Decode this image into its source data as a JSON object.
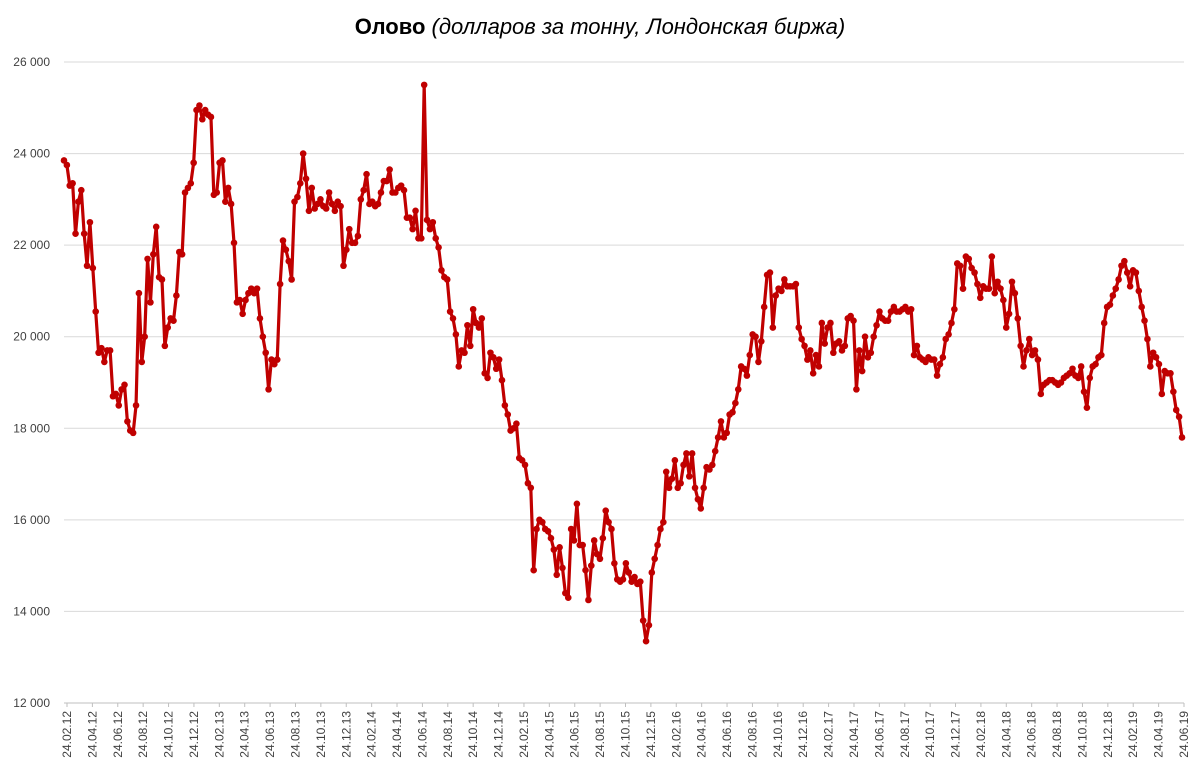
{
  "chart_data": {
    "type": "line",
    "title": "Олово",
    "subtitle": "(долларов за тонну, Лондонская биржа)",
    "xlabel": "",
    "ylabel": "",
    "ylim": [
      12000,
      26000
    ],
    "yticks": [
      12000,
      14000,
      16000,
      18000,
      20000,
      22000,
      24000,
      26000
    ],
    "ytick_labels": [
      "12 000",
      "14 000",
      "16 000",
      "18 000",
      "20 000",
      "22 000",
      "24 000",
      "26 000"
    ],
    "xtick_labels": [
      "24.02.12",
      "24.04.12",
      "24.06.12",
      "24.08.12",
      "24.10.12",
      "24.12.12",
      "24.02.13",
      "24.04.13",
      "24.06.13",
      "24.08.13",
      "24.10.13",
      "24.12.13",
      "24.02.14",
      "24.04.14",
      "24.06.14",
      "24.08.14",
      "24.10.14",
      "24.12.14",
      "24.02.15",
      "24.04.15",
      "24.06.15",
      "24.08.15",
      "24.10.15",
      "24.12.15",
      "24.02.16",
      "24.04.16",
      "24.06.16",
      "24.08.16",
      "24.10.16",
      "24.12.16",
      "24.02.17",
      "24.04.17",
      "24.06.17",
      "24.08.17",
      "24.10.17",
      "24.12.17",
      "24.02.18",
      "24.04.18",
      "24.06.18",
      "24.08.18",
      "24.10.18",
      "24.12.18",
      "24.02.19",
      "24.04.19",
      "24.06.19"
    ],
    "grid": true,
    "colors": {
      "line": "#c00000",
      "grid": "#d9d9d9",
      "axis": "#bfbfbf",
      "text": "#404040"
    },
    "series": [
      {
        "values": [
          23850,
          23750,
          23300,
          23350,
          22250,
          22950,
          23200,
          22250,
          21550,
          22500,
          21500,
          20550,
          19650,
          19750,
          19450,
          19700,
          19700,
          18700,
          18750,
          18500,
          18850,
          18950,
          18150,
          17950,
          17900,
          18500,
          20950,
          19450,
          20000,
          21700,
          20750,
          21800,
          22400,
          21300,
          21250,
          19800,
          20200,
          20400,
          20350,
          20900,
          21850,
          21800,
          23150,
          23250,
          23350,
          23800,
          24950,
          25050,
          24750,
          24950,
          24850,
          24800,
          23100,
          23150,
          23800,
          23850,
          22950,
          23250,
          22900,
          22050,
          20750,
          20800,
          20500,
          20800,
          20950,
          21050,
          20950,
          21050,
          20400,
          20000,
          19650,
          18850,
          19500,
          19400,
          19500,
          21150,
          22100,
          21900,
          21650,
          21250,
          22950,
          23050,
          23350,
          24000,
          23450,
          22750,
          23250,
          22800,
          22900,
          23000,
          22850,
          22800,
          23150,
          22900,
          22750,
          22950,
          22850,
          21550,
          21900,
          22350,
          22050,
          22050,
          22200,
          23000,
          23200,
          23550,
          22900,
          22950,
          22850,
          22900,
          23150,
          23400,
          23400,
          23650,
          23150,
          23150,
          23250,
          23300,
          23200,
          22600,
          22600,
          22350,
          22750,
          22150,
          22150,
          25500,
          22550,
          22350,
          22500,
          22150,
          21950,
          21450,
          21300,
          21250,
          20550,
          20400,
          20050,
          19350,
          19700,
          19650,
          20250,
          19800,
          20600,
          20300,
          20200,
          20400,
          19200,
          19100,
          19650,
          19550,
          19300,
          19500,
          19050,
          18500,
          18300,
          17950,
          18000,
          18100,
          17350,
          17300,
          17200,
          16800,
          16700,
          14900,
          15800,
          16000,
          15950,
          15800,
          15750,
          15600,
          15350,
          14800,
          15400,
          14950,
          14400,
          14300,
          15800,
          15550,
          16350,
          15450,
          15450,
          14900,
          14250,
          15000,
          15550,
          15250,
          15150,
          15600,
          16200,
          15950,
          15800,
          15050,
          14700,
          14650,
          14700,
          15050,
          14850,
          14650,
          14750,
          14600,
          14650,
          13800,
          13350,
          13700,
          14850,
          15150,
          15450,
          15800,
          15950,
          17050,
          16700,
          16900,
          17300,
          16700,
          16800,
          17200,
          17450,
          16950,
          17450,
          16700,
          16450,
          16250,
          16700,
          17150,
          17100,
          17200,
          17500,
          17800,
          18150,
          17800,
          17900,
          18300,
          18350,
          18550,
          18850,
          19350,
          19300,
          19150,
          19600,
          20050,
          20000,
          19450,
          19900,
          20650,
          21350,
          21400,
          20200,
          20900,
          21050,
          21000,
          21250,
          21100,
          21100,
          21100,
          21150,
          20200,
          19950,
          19800,
          19500,
          19700,
          19200,
          19600,
          19350,
          20300,
          19850,
          20200,
          20300,
          19650,
          19850,
          19900,
          19700,
          19800,
          20400,
          20450,
          20350,
          18850,
          19700,
          19250,
          20000,
          19550,
          19650,
          20000,
          20250,
          20550,
          20400,
          20350,
          20350,
          20550,
          20650,
          20550,
          20550,
          20600,
          20650,
          20550,
          20600,
          19600,
          19800,
          19550,
          19500,
          19450,
          19550,
          19500,
          19500,
          19150,
          19400,
          19550,
          19950,
          20050,
          20300,
          20600,
          21600,
          21550,
          21050,
          21750,
          21700,
          21500,
          21400,
          21150,
          20850,
          21100,
          21050,
          21050,
          21750,
          20950,
          21200,
          21050,
          20800,
          20200,
          20500,
          21200,
          20950,
          20400,
          19800,
          19350,
          19700,
          19950,
          19600,
          19700,
          19500,
          18750,
          18950,
          19000,
          19050,
          19050,
          19000,
          18950,
          19000,
          19100,
          19150,
          19200,
          19300,
          19150,
          19100,
          19350,
          18800,
          18450,
          19100,
          19350,
          19400,
          19550,
          19600,
          20300,
          20650,
          20700,
          20900,
          21050,
          21250,
          21550,
          21650,
          21400,
          21100,
          21450,
          21400,
          21000,
          20650,
          20350,
          19950,
          19350,
          19650,
          19550,
          19400,
          18750,
          19250,
          19200,
          19200,
          18800,
          18400,
          18250,
          17800
        ]
      }
    ]
  }
}
